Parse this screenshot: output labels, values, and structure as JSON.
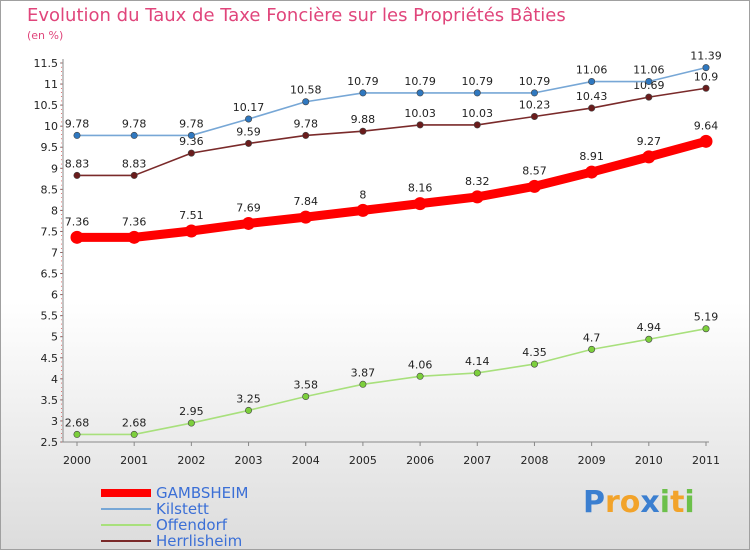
{
  "chart_data": {
    "type": "line",
    "title": "Evolution du Taux de Taxe Foncière sur les Propriétés Bâties",
    "unit_label": "(en %)",
    "categories": [
      "2000",
      "2001",
      "2002",
      "2003",
      "2004",
      "2005",
      "2006",
      "2007",
      "2008",
      "2009",
      "2010",
      "2011"
    ],
    "ylim": [
      2.5,
      11.5
    ],
    "yticks": [
      "2.5",
      "3",
      "3.5",
      "4",
      "4.5",
      "5",
      "5.5",
      "6",
      "6.5",
      "7",
      "7.5",
      "8",
      "8.5",
      "9",
      "9.5",
      "10",
      "10.5",
      "11",
      "11.5"
    ],
    "grid": false,
    "legend_position": "bottom-left",
    "series": [
      {
        "name": "GAMBSHEIM",
        "color": "#ff0000",
        "point_color": "#ff0000",
        "values": [
          7.36,
          7.36,
          7.51,
          7.69,
          7.84,
          8,
          8.16,
          8.32,
          8.57,
          8.91,
          9.27,
          9.64
        ],
        "labels": [
          "7.36",
          "7.36",
          "7.51",
          "7.69",
          "7.84",
          "8",
          "8.16",
          "8.32",
          "8.57",
          "8.91",
          "9.27",
          "9.64"
        ]
      },
      {
        "name": "Kilstett",
        "color": "#77a7d6",
        "point_color": "#2f78c0",
        "values": [
          9.78,
          9.78,
          9.78,
          10.17,
          10.58,
          10.79,
          10.79,
          10.79,
          10.79,
          11.06,
          11.06,
          11.39
        ],
        "labels": [
          "9.78",
          "9.78",
          "9.78",
          "10.17",
          "10.58",
          "10.79",
          "10.79",
          "10.79",
          "10.79",
          "11.06",
          "11.06",
          "11.39"
        ]
      },
      {
        "name": "Offendorf",
        "color": "#a8e07c",
        "point_color": "#7ccf3c",
        "values": [
          2.68,
          2.68,
          2.95,
          3.25,
          3.58,
          3.87,
          4.06,
          4.14,
          4.35,
          4.7,
          4.94,
          5.19
        ],
        "labels": [
          "2.68",
          "2.68",
          "2.95",
          "3.25",
          "3.58",
          "3.87",
          "4.06",
          "4.14",
          "4.35",
          "4.7",
          "4.94",
          "5.19"
        ]
      },
      {
        "name": "Herrlisheim",
        "color": "#7a2a2a",
        "point_color": "#6a1c1c",
        "values": [
          8.83,
          8.83,
          9.36,
          9.59,
          9.78,
          9.88,
          10.03,
          10.03,
          10.23,
          10.43,
          10.69,
          10.9
        ],
        "labels": [
          "8.83",
          "8.83",
          "9.36",
          "9.59",
          "9.78",
          "9.88",
          "10.03",
          "10.03",
          "10.23",
          "10.43",
          "10.69",
          "10.9"
        ]
      }
    ]
  },
  "brand": {
    "letters": [
      "P",
      "r",
      "o",
      "x",
      "i",
      "t",
      "i"
    ],
    "colors": [
      "#3b7fd0",
      "#f2a32a",
      "#f2a32a",
      "#3b7fd0",
      "#6cc04a",
      "#f2a32a",
      "#6cc04a"
    ]
  }
}
